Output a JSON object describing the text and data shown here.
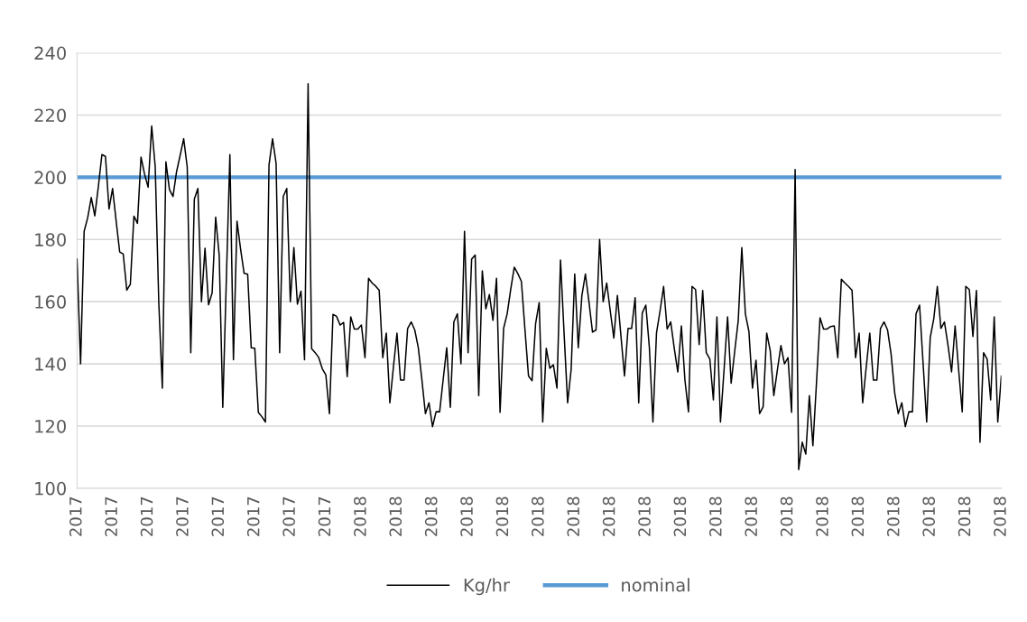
{
  "chart_data": {
    "type": "line",
    "categories": [
      "2017",
      null,
      null,
      null,
      null,
      null,
      null,
      null,
      null,
      null,
      "2017",
      null,
      null,
      null,
      null,
      null,
      null,
      null,
      null,
      null,
      "2017",
      null,
      null,
      null,
      null,
      null,
      null,
      null,
      null,
      null,
      "2017",
      null,
      null,
      null,
      null,
      null,
      null,
      null,
      null,
      null,
      "2017",
      null,
      null,
      null,
      null,
      null,
      null,
      null,
      null,
      null,
      "2017",
      null,
      null,
      null,
      null,
      null,
      null,
      null,
      null,
      null,
      "2017",
      null,
      null,
      null,
      null,
      null,
      null,
      null,
      null,
      null,
      "2017",
      null,
      null,
      null,
      null,
      null,
      null,
      null,
      null,
      null,
      "2018",
      null,
      null,
      null,
      null,
      null,
      null,
      null,
      null,
      null,
      "2018",
      null,
      null,
      null,
      null,
      null,
      null,
      null,
      null,
      null,
      "2018",
      null,
      null,
      null,
      null,
      null,
      null,
      null,
      null,
      null,
      "2018",
      null,
      null,
      null,
      null,
      null,
      null,
      null,
      null,
      null,
      "2018",
      null,
      null,
      null,
      null,
      null,
      null,
      null,
      null,
      null,
      "2018",
      null,
      null,
      null,
      null,
      null,
      null,
      null,
      null,
      null,
      "2018",
      null,
      null,
      null,
      null,
      null,
      null,
      null,
      null,
      null,
      "2018",
      null,
      null,
      null,
      null,
      null,
      null,
      null,
      null,
      null,
      "2018",
      null,
      null,
      null,
      null,
      null,
      null,
      null,
      null,
      null,
      "2018",
      null,
      null,
      null,
      null,
      null,
      null,
      null,
      null,
      null,
      "2018",
      null,
      null,
      null,
      null,
      null,
      null,
      null,
      null,
      null,
      "2018",
      null,
      null,
      null,
      null,
      null,
      null,
      null,
      null,
      null,
      "2018",
      null,
      null,
      null,
      null,
      null,
      null,
      null,
      null,
      null,
      "2018",
      null,
      null,
      null,
      null,
      null,
      null,
      null,
      null,
      null,
      "2018",
      null,
      null,
      null,
      null,
      null,
      null,
      null,
      null,
      null,
      "2018",
      null,
      null,
      null,
      null,
      null,
      null,
      null,
      null,
      null,
      "2018",
      null,
      null,
      null,
      null,
      null,
      null,
      null,
      null,
      null,
      "2018",
      null,
      null,
      null,
      null,
      null,
      null,
      null,
      null,
      null,
      "2018"
    ],
    "ylim": [
      100,
      240
    ],
    "yticks": [
      100,
      120,
      140,
      160,
      180,
      200,
      220,
      240
    ],
    "grid": "y",
    "legend": "bottom",
    "line_style": "solid",
    "marker": "none",
    "series": [
      {
        "name": "Kg/hr",
        "color": "#000000",
        "values": [
          173.7,
          140,
          182.6,
          187,
          193.5,
          187.6,
          197,
          207.3,
          206.7,
          189.8,
          196.4,
          186,
          176,
          175.3,
          163.7,
          165.6,
          187.5,
          185.2,
          206.5,
          201,
          196.8,
          216.5,
          203.3,
          159.7,
          132.2,
          205,
          196,
          193.8,
          201.8,
          207,
          212.4,
          203.3,
          143.6,
          193,
          196.4,
          160,
          177.2,
          159,
          162.8,
          187.2,
          174.8,
          126,
          167,
          207.3,
          141.3,
          185.9,
          177,
          169.1,
          168.8,
          145.2,
          145,
          124.4,
          123,
          121.3,
          203.9,
          212.4,
          204.4,
          143.6,
          193.8,
          196.4,
          160,
          177.4,
          159.2,
          163.4,
          141.3,
          230.1,
          144.9,
          143.6,
          142,
          138.4,
          136.4,
          124,
          155.9,
          155.3,
          152.5,
          153.3,
          135.9,
          155.1,
          151.2,
          151.2,
          152.5,
          142,
          167.5,
          166,
          165,
          163.7,
          142,
          149.9,
          127.5,
          139,
          149.9,
          134.8,
          134.8,
          151.4,
          153.5,
          150.9,
          145.2,
          135,
          124,
          127.5,
          119.8,
          124.6,
          124.6,
          135,
          145.2,
          126,
          153.5,
          156.1,
          140,
          182.6,
          143.6,
          173.7,
          175,
          129.8,
          169.9,
          157.7,
          162.3,
          154,
          167.5,
          124.4,
          151.4,
          156.1,
          164,
          171.1,
          169,
          166.5,
          151,
          136.1,
          134.6,
          153,
          159.7,
          121.3,
          145,
          138.6,
          139.7,
          132.2,
          173.4,
          150,
          127.5,
          138.2,
          168.9,
          145.2,
          161.8,
          168.9,
          160,
          150.2,
          150.9,
          180,
          160,
          166,
          157,
          148.3,
          162,
          149,
          136.1,
          151.4,
          151.4,
          161.3,
          127.5,
          156.4,
          158.9,
          145.2,
          121.3,
          149.9,
          157,
          164.9,
          151.2,
          153.5,
          145,
          137.4,
          152.2,
          134.8,
          124.6,
          164.9,
          163.9,
          146.2,
          163.6,
          143.6,
          141.6,
          128.4,
          155.1,
          121.3,
          138,
          155.1,
          133.8,
          144,
          154,
          177.4,
          156.1,
          150.4,
          132.2,
          141.2,
          124,
          126.2,
          149.9,
          144.2,
          129.8,
          138,
          145.9,
          140,
          142,
          124.4,
          202.5,
          106,
          114.8,
          111,
          129.8,
          113.7,
          133.8,
          154.8,
          151.2,
          151.2,
          152,
          152.2,
          142,
          167.2,
          166,
          164.9,
          163.7,
          142,
          149.9,
          127.5,
          139,
          149.9,
          134.8,
          134.8,
          151.4,
          153.5,
          150.9,
          143.1,
          130.7,
          124,
          127.5,
          119.8,
          124.6,
          124.6,
          156.1,
          158.9,
          140,
          121.3,
          148.5,
          154.5,
          164.9,
          151.4,
          153.5,
          146,
          137.4,
          152.2,
          138,
          124.6,
          164.9,
          163.9,
          148.8,
          163.6,
          114.8,
          143.6,
          141.6,
          128.4,
          155.1,
          121.3,
          136.1
        ]
      }
    ],
    "ref_lines": [
      {
        "axis": "y",
        "value": 200,
        "label": "nominal",
        "color": "#5b9bd5"
      }
    ]
  }
}
